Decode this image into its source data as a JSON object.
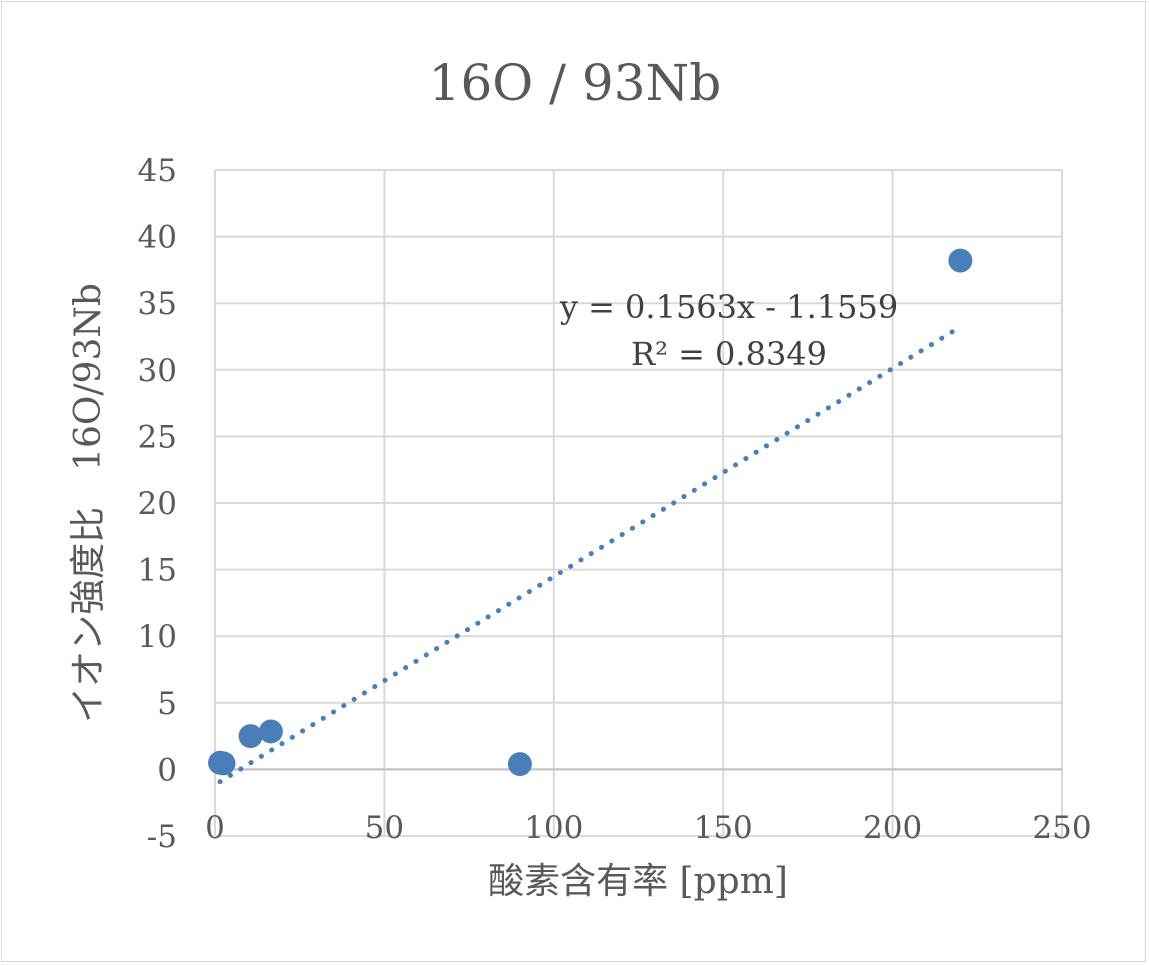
{
  "chart_data": {
    "type": "scatter",
    "title": "16O / 93Nb",
    "xlabel": "酸素含有率 [ppm]",
    "ylabel": "イオン強度比　16O/93Nb",
    "xlim": [
      0,
      250
    ],
    "ylim": [
      -5,
      45
    ],
    "x_ticks": [
      "0",
      "50",
      "100",
      "150",
      "200",
      "250"
    ],
    "y_ticks": [
      "-5",
      "0",
      "5",
      "10",
      "15",
      "20",
      "25",
      "30",
      "35",
      "40",
      "45"
    ],
    "grid": true,
    "legend": "none",
    "series": [
      {
        "points": [
          {
            "x": 1.5,
            "y": 0.5
          },
          {
            "x": 2.5,
            "y": 0.45
          },
          {
            "x": 10.5,
            "y": 2.5
          },
          {
            "x": 16.5,
            "y": 2.85
          },
          {
            "x": 90,
            "y": 0.4
          },
          {
            "x": 220,
            "y": 38.2
          }
        ],
        "color": "#4a7ebb"
      }
    ],
    "trendline": {
      "type": "linear",
      "style": "dotted",
      "slope": 0.1563,
      "intercept": -1.1559,
      "x_range": [
        1.5,
        220
      ],
      "equation_text": "y = 0.1563x - 1.1559",
      "r2_text": "R² = 0.8349",
      "color": "#4a7ebb"
    }
  },
  "colors": {
    "grid": "#d9d9d9",
    "text": "#595959",
    "marker": "#4a7ebb"
  }
}
